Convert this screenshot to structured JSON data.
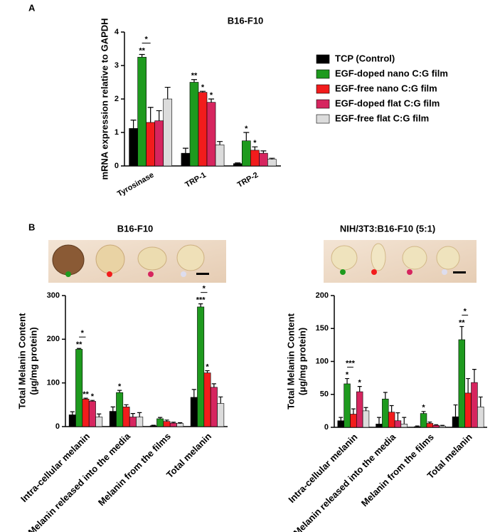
{
  "chart_data": [
    {
      "type": "bar",
      "panel": "A",
      "title": "B16-F10",
      "y_label": [
        "mRNA expression relative to GAPDH"
      ],
      "categories": [
        "Tyrosinase",
        "TRP-1",
        "TRP-2"
      ],
      "series": [
        {
          "name": "TCP (Control)",
          "color": "#000000",
          "values": [
            1.12,
            0.38,
            0.07
          ],
          "errors": [
            0.25,
            0.15,
            0.02
          ]
        },
        {
          "name": "EGF-doped nano C:G film",
          "color": "#1e9a1e",
          "values": [
            3.25,
            2.5,
            0.75
          ],
          "errors": [
            0.08,
            0.08,
            0.25
          ]
        },
        {
          "name": "EGF-free nano C:G film",
          "color": "#f21c1c",
          "values": [
            1.3,
            2.2,
            0.47
          ],
          "errors": [
            0.45,
            0.03,
            0.1
          ]
        },
        {
          "name": "EGF-doped flat C:G film",
          "color": "#d6255f",
          "values": [
            1.35,
            1.9,
            0.38
          ],
          "errors": [
            0.3,
            0.1,
            0.07
          ]
        },
        {
          "name": "EGF-free flat C:G film",
          "color": "#dcdcdc",
          "values": [
            2.0,
            0.63,
            0.2
          ],
          "errors": [
            0.35,
            0.1,
            0.03
          ]
        }
      ],
      "ylim": [
        0,
        4
      ],
      "yticks": [
        0,
        1,
        2,
        3,
        4
      ],
      "legend": "right",
      "annotations": [
        {
          "text": "**",
          "category": 0,
          "series": 1
        },
        {
          "text": "*",
          "category": 0,
          "series": 1,
          "to_series": 2
        },
        {
          "text": "**",
          "category": 1,
          "series": 1
        },
        {
          "text": "*",
          "category": 1,
          "series": 2
        },
        {
          "text": "*",
          "category": 1,
          "series": 3
        },
        {
          "text": "*",
          "category": 2,
          "series": 1
        },
        {
          "text": "*",
          "category": 2,
          "series": 2
        }
      ]
    },
    {
      "type": "bar",
      "panel": "B",
      "title": "B16-F10",
      "y_label": [
        "Total Melanin Content",
        "(μg/mg protein)"
      ],
      "categories": [
        "Intra-cellular melanin",
        "Melanin released into the media",
        "Melanin from the films",
        "Total melanin"
      ],
      "series": [
        {
          "color": "#000000",
          "values": [
            27,
            35,
            2,
            67
          ],
          "errors": [
            7,
            10,
            1,
            18
          ]
        },
        {
          "color": "#1e9a1e",
          "values": [
            177,
            78,
            18,
            274
          ],
          "errors": [
            2,
            5,
            3,
            7
          ]
        },
        {
          "color": "#f21c1c",
          "values": [
            63,
            45,
            12,
            123
          ],
          "errors": [
            2,
            5,
            3,
            5
          ]
        },
        {
          "color": "#d6255f",
          "values": [
            58,
            22,
            8,
            90
          ],
          "errors": [
            2,
            8,
            2,
            8
          ]
        },
        {
          "color": "#dcdcdc",
          "values": [
            22,
            22,
            7,
            53
          ],
          "errors": [
            7,
            10,
            2,
            15
          ]
        }
      ],
      "ylim": [
        0,
        300
      ],
      "yticks": [
        0,
        100,
        200,
        300
      ],
      "annotations": [
        {
          "text": "**",
          "category": 0,
          "series": 1
        },
        {
          "text": "*",
          "category": 0,
          "series": 1,
          "to_series": 2
        },
        {
          "text": "**",
          "category": 0,
          "series": 2
        },
        {
          "text": "*",
          "category": 0,
          "series": 3
        },
        {
          "text": "*",
          "category": 1,
          "series": 1
        },
        {
          "text": "***",
          "category": 3,
          "series": 1
        },
        {
          "text": "*",
          "category": 3,
          "series": 1,
          "to_series": 2
        },
        {
          "text": "*",
          "category": 3,
          "series": 2
        }
      ]
    },
    {
      "type": "bar",
      "title": "NIH/3T3:B16-F10 (5:1)",
      "y_label": [
        "Total Melanin Content",
        "(μg/mg protein)"
      ],
      "categories": [
        "Intra-cellular melanin",
        "Melanin released into the media",
        "Melanin from the films",
        "Total melanin"
      ],
      "series": [
        {
          "color": "#000000",
          "values": [
            10,
            5,
            1,
            16
          ],
          "errors": [
            5,
            10,
            1,
            18
          ]
        },
        {
          "color": "#1e9a1e",
          "values": [
            66,
            43,
            21,
            133
          ],
          "errors": [
            8,
            10,
            3,
            20
          ]
        },
        {
          "color": "#f21c1c",
          "values": [
            20,
            23,
            6,
            52
          ],
          "errors": [
            8,
            10,
            2,
            22
          ]
        },
        {
          "color": "#d6255f",
          "values": [
            54,
            10,
            3,
            68
          ],
          "errors": [
            8,
            12,
            1,
            20
          ]
        },
        {
          "color": "#dcdcdc",
          "values": [
            25,
            5,
            2,
            31
          ],
          "errors": [
            5,
            10,
            1,
            15
          ]
        }
      ],
      "ylim": [
        0,
        200
      ],
      "yticks": [
        0,
        50,
        100,
        150,
        200
      ],
      "annotations": [
        {
          "text": "*",
          "category": 0,
          "series": 1
        },
        {
          "text": "***",
          "category": 0,
          "series": 1,
          "to_series": 2
        },
        {
          "text": "*",
          "category": 0,
          "series": 3
        },
        {
          "text": "*",
          "category": 2,
          "series": 1
        },
        {
          "text": "**",
          "category": 3,
          "series": 1
        },
        {
          "text": "*",
          "category": 3,
          "series": 1,
          "to_series": 2
        }
      ]
    }
  ]
}
